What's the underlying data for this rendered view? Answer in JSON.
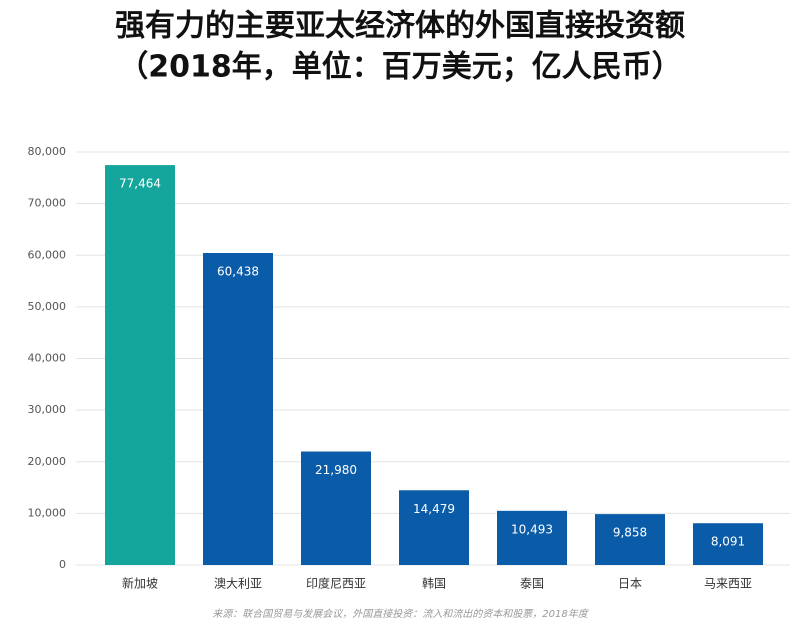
{
  "chart_data": {
    "type": "bar",
    "title": [
      "强有力的主要亚太经济体的外国直接投资额",
      "（2018年，单位：百万美元；亿人民币）"
    ],
    "categories": [
      "新加坡",
      "澳大利亚",
      "印度尼西亚",
      "韩国",
      "泰国",
      "日本",
      "马来西亚"
    ],
    "values": [
      77464,
      60438,
      21980,
      14479,
      10493,
      9858,
      8091
    ],
    "value_labels": [
      "77,464",
      "60,438",
      "21,980",
      "14,479",
      "10,493",
      "9,858",
      "8,091"
    ],
    "colors": [
      "#14a69c",
      "#0a5ca8",
      "#0a5ca8",
      "#0a5ca8",
      "#0a5ca8",
      "#0a5ca8",
      "#0a5ca8"
    ],
    "ylim": [
      0,
      80000
    ],
    "yticks": [
      0,
      {
        "value": 10000,
        "label": "10,000"
      },
      {
        "value": 20000,
        "label": "20,000"
      },
      {
        "value": 30000,
        "label": "30,000"
      },
      {
        "value": 40000,
        "label": "40,000"
      },
      {
        "value": 50000,
        "label": "50,000"
      },
      {
        "value": 60000,
        "label": "60,000"
      },
      {
        "value": 70000,
        "label": "70,000"
      },
      {
        "value": 80000,
        "label": "80,000"
      }
    ],
    "grid": true,
    "source": "来源：联合国贸易与发展会议，外国直接投资：流入和流出的资本和股票，2018年度"
  }
}
